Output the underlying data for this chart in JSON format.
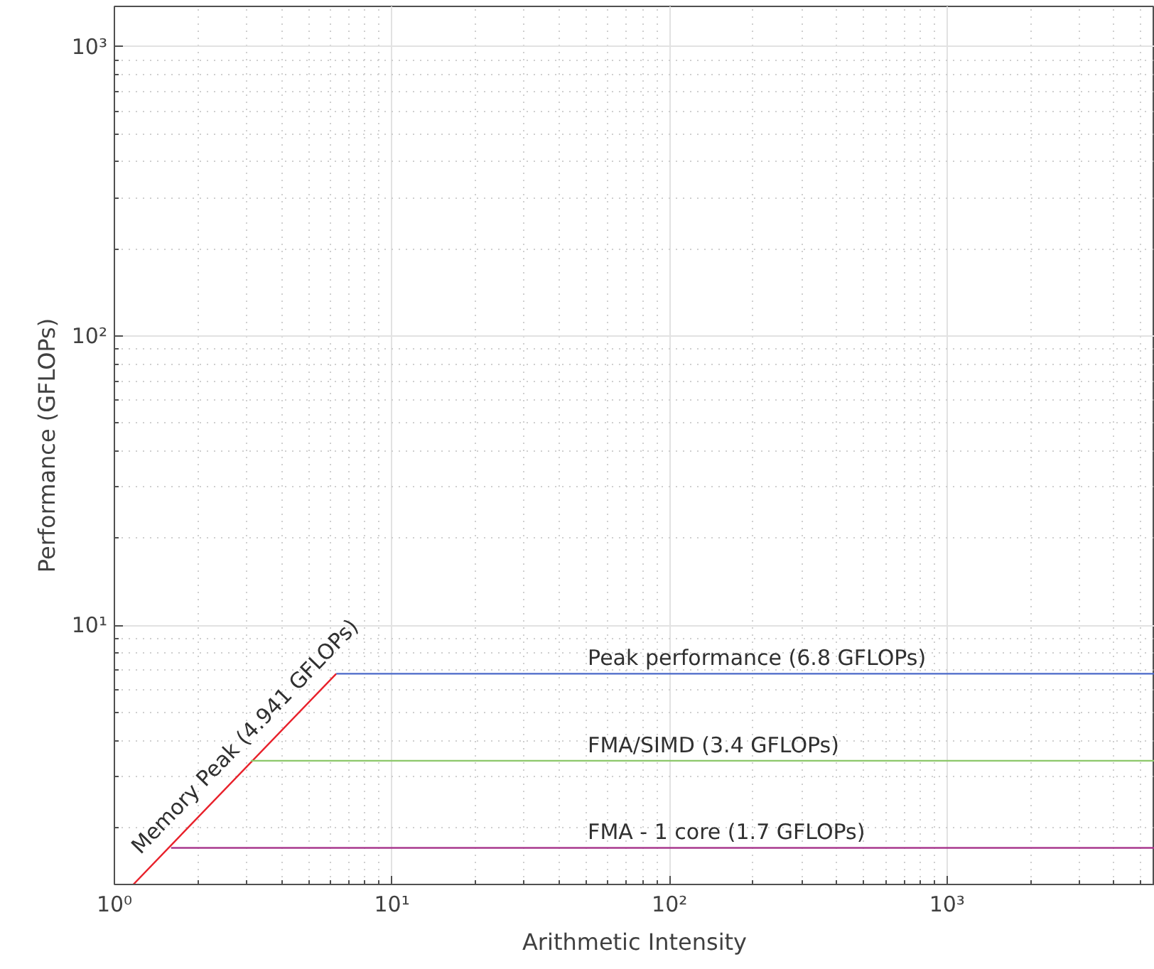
{
  "chart_data": {
    "type": "line",
    "xlabel": "Arithmetic Intensity",
    "ylabel": "Performance (GFLOPs)",
    "log": "xy",
    "grid": true,
    "legend": false,
    "xlim": [
      1,
      5600
    ],
    "ylim": [
      1.27,
      1380
    ],
    "xticks": [
      {
        "value": 1,
        "label": "10⁰"
      },
      {
        "value": 10,
        "label": "10¹"
      },
      {
        "value": 100,
        "label": "10²"
      },
      {
        "value": 1000,
        "label": "10³"
      }
    ],
    "yticks": [
      {
        "value": 10,
        "label": "10¹"
      },
      {
        "value": 100,
        "label": "10²"
      },
      {
        "value": 1000,
        "label": "10³"
      }
    ],
    "series": [
      {
        "name": "Memory Peak (4.941 GFLOPs)",
        "color": "#e8202a",
        "x": [
          1.17,
          6.3
        ],
        "values": [
          1.27,
          6.8
        ]
      },
      {
        "name": "Peak performance (6.8 GFLOPs)",
        "color": "#4a68c8",
        "x": [
          6.3,
          5600
        ],
        "values": [
          6.8,
          6.8
        ]
      },
      {
        "name": "FMA/SIMD (3.4 GFLOPs)",
        "color": "#8cc86a",
        "x": [
          3.1,
          5600
        ],
        "values": [
          3.4,
          3.4
        ]
      },
      {
        "name": "FMA - 1 core (1.7 GFLOPs)",
        "color": "#a8388e",
        "x": [
          1.6,
          5600
        ],
        "values": [
          1.7,
          1.7
        ]
      }
    ]
  }
}
